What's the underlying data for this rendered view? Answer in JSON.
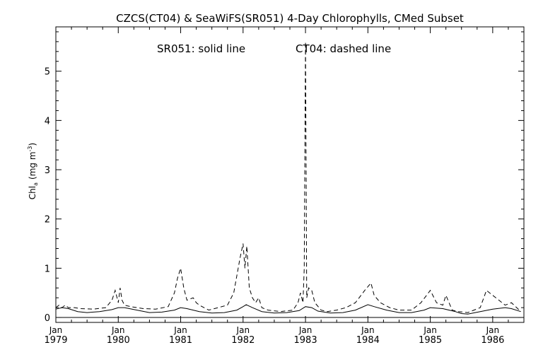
{
  "chart_data": {
    "type": "line",
    "title": "CZCS(CT04) & SeaWiFS(SR051) 4-Day Chlorophylls, CMed Subset",
    "ylabel": "Chl",
    "ylabel_sub": "a",
    "ylabel_units": "(mg m",
    "ylabel_exp": "-3",
    "ylabel_close": ")",
    "annotation_solid": "SR051: solid line",
    "annotation_dashed": "CT04: dashed line",
    "xlim": [
      1979.0,
      1986.5
    ],
    "ylim": [
      -0.1,
      5.9
    ],
    "yticks": [
      0,
      1,
      2,
      3,
      4,
      5
    ],
    "ytick_labels": [
      "0",
      "1",
      "2",
      "3",
      "4",
      "5"
    ],
    "xticks": [
      {
        "x": 1979.0,
        "month": "Jan",
        "year": "1979"
      },
      {
        "x": 1980.0,
        "month": "Jan",
        "year": "1980"
      },
      {
        "x": 1981.0,
        "month": "Jan",
        "year": "1981"
      },
      {
        "x": 1982.0,
        "month": "Jan",
        "year": "1982"
      },
      {
        "x": 1983.0,
        "month": "Jan",
        "year": "1983"
      },
      {
        "x": 1984.0,
        "month": "Jan",
        "year": "1984"
      },
      {
        "x": 1985.0,
        "month": "Jan",
        "year": "1985"
      },
      {
        "x": 1986.0,
        "month": "Jan",
        "year": "1986"
      }
    ],
    "series": [
      {
        "name": "SR051",
        "style": "solid",
        "x": [
          1979.0,
          1979.1,
          1979.2,
          1979.35,
          1979.5,
          1979.7,
          1979.9,
          1980.0,
          1980.1,
          1980.3,
          1980.5,
          1980.7,
          1980.9,
          1981.0,
          1981.1,
          1981.3,
          1981.5,
          1981.7,
          1981.9,
          1982.0,
          1982.05,
          1982.15,
          1982.3,
          1982.5,
          1982.7,
          1982.9,
          1983.0,
          1983.1,
          1983.2,
          1983.4,
          1983.6,
          1983.8,
          1984.0,
          1984.1,
          1984.3,
          1984.5,
          1984.7,
          1984.9,
          1985.0,
          1985.2,
          1985.4,
          1985.5,
          1985.6,
          1985.8,
          1986.0,
          1986.2,
          1986.3,
          1986.45
        ],
        "y": [
          0.17,
          0.2,
          0.18,
          0.12,
          0.1,
          0.12,
          0.16,
          0.2,
          0.2,
          0.15,
          0.1,
          0.11,
          0.15,
          0.2,
          0.18,
          0.12,
          0.09,
          0.1,
          0.15,
          0.22,
          0.26,
          0.2,
          0.12,
          0.09,
          0.1,
          0.14,
          0.22,
          0.2,
          0.13,
          0.09,
          0.1,
          0.15,
          0.26,
          0.22,
          0.15,
          0.1,
          0.1,
          0.15,
          0.2,
          0.18,
          0.12,
          0.08,
          0.07,
          0.12,
          0.17,
          0.2,
          0.18,
          0.12
        ]
      },
      {
        "name": "CT04",
        "style": "dashed",
        "x": [
          1979.0,
          1979.05,
          1979.1,
          1979.15,
          1979.2,
          1979.3,
          1979.4,
          1979.6,
          1979.8,
          1979.9,
          1979.95,
          1980.0,
          1980.03,
          1980.06,
          1980.1,
          1980.2,
          1980.4,
          1980.6,
          1980.8,
          1980.9,
          1980.95,
          1981.0,
          1981.05,
          1981.1,
          1981.2,
          1981.25,
          1981.3,
          1981.45,
          1981.6,
          1981.75,
          1981.85,
          1981.95,
          1982.0,
          1982.03,
          1982.06,
          1982.1,
          1982.15,
          1982.2,
          1982.25,
          1982.3,
          1982.4,
          1982.6,
          1982.8,
          1982.88,
          1982.92,
          1982.96,
          1982.98,
          1983.0,
          1983.02,
          1983.05,
          1983.1,
          1983.15,
          1983.25,
          1983.35,
          1983.5,
          1983.65,
          1983.8,
          1983.95,
          1984.05,
          1984.1,
          1984.2,
          1984.35,
          1984.5,
          1984.7,
          1984.85,
          1985.0,
          1985.1,
          1985.2,
          1985.25,
          1985.3,
          1985.35,
          1985.45,
          1985.6,
          1985.8,
          1985.9,
          1986.0,
          1986.1,
          1986.2,
          1986.3,
          1986.45
        ],
        "y": [
          0.2,
          0.25,
          0.2,
          0.25,
          0.2,
          0.2,
          0.18,
          0.17,
          0.2,
          0.35,
          0.55,
          0.3,
          0.6,
          0.35,
          0.25,
          0.22,
          0.18,
          0.17,
          0.22,
          0.5,
          0.8,
          1.0,
          0.6,
          0.35,
          0.4,
          0.3,
          0.25,
          0.15,
          0.2,
          0.25,
          0.5,
          1.2,
          1.5,
          1.0,
          1.45,
          0.6,
          0.4,
          0.3,
          0.4,
          0.2,
          0.15,
          0.12,
          0.15,
          0.3,
          0.5,
          0.3,
          1.0,
          5.6,
          0.4,
          0.6,
          0.55,
          0.3,
          0.15,
          0.12,
          0.15,
          0.2,
          0.3,
          0.55,
          0.7,
          0.45,
          0.3,
          0.2,
          0.15,
          0.15,
          0.3,
          0.55,
          0.3,
          0.25,
          0.45,
          0.3,
          0.15,
          0.12,
          0.1,
          0.2,
          0.55,
          0.45,
          0.35,
          0.25,
          0.3,
          0.12
        ]
      }
    ]
  }
}
